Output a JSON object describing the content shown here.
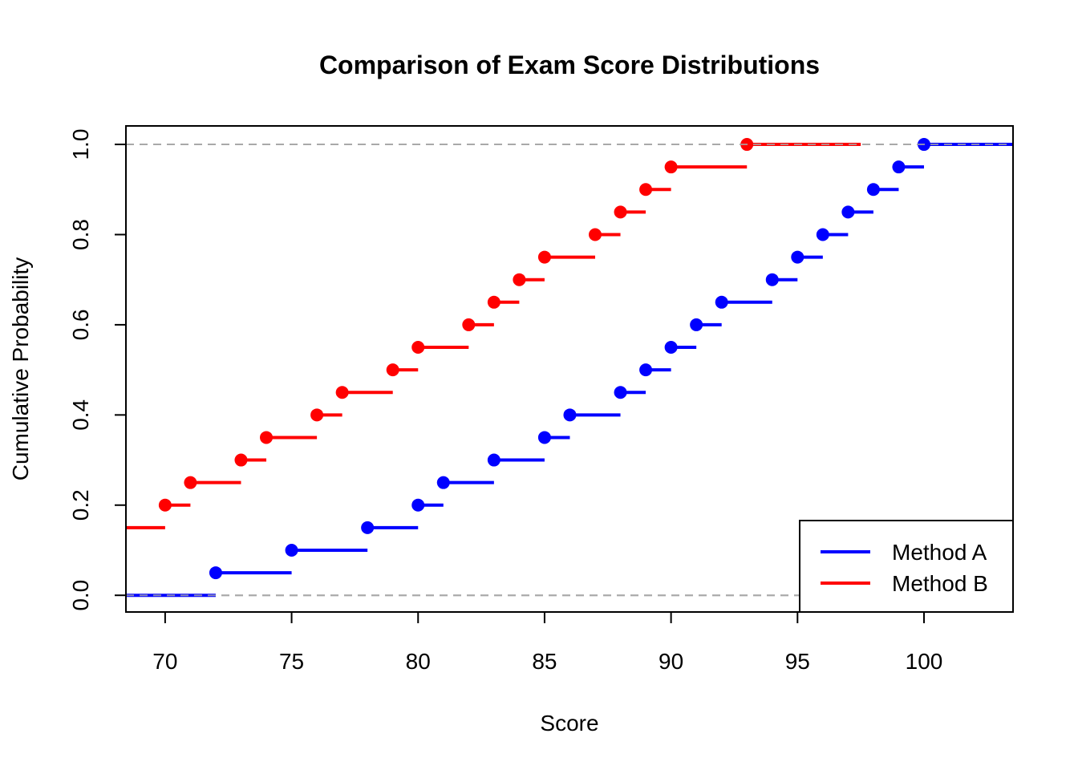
{
  "chart_data": {
    "type": "line",
    "subtype": "ecdf-step",
    "title": "Comparison of Exam Score Distributions",
    "xlabel": "Score",
    "ylabel": "Cumulative Probability",
    "xlim": [
      68.45,
      103.52
    ],
    "ylim": [
      -0.037,
      1.041
    ],
    "xticks": [
      70,
      75,
      80,
      85,
      90,
      95,
      100
    ],
    "xtick_labels": [
      "70",
      "75",
      "80",
      "85",
      "90",
      "95",
      "100"
    ],
    "yticks": [
      0,
      0.2,
      0.4,
      0.6,
      0.8,
      1.0
    ],
    "ytick_labels": [
      "0.0",
      "0.2",
      "0.4",
      "0.6",
      "0.8",
      "1.0"
    ],
    "reference_lines": [
      0,
      1
    ],
    "legend_position": "bottom-right",
    "series": [
      {
        "name": "Method A",
        "color": "#0000ff",
        "start_value": 0,
        "x": [
          72,
          75,
          78,
          80,
          81,
          83,
          85,
          86,
          88,
          89,
          90,
          91,
          92,
          94,
          95,
          96,
          97,
          98,
          99,
          100
        ],
        "y": [
          0.05,
          0.1,
          0.15,
          0.2,
          0.25,
          0.3,
          0.35,
          0.4,
          0.45,
          0.5,
          0.55,
          0.6,
          0.65,
          0.7,
          0.75,
          0.8,
          0.85,
          0.9,
          0.95,
          1.0
        ],
        "end_x": 103.52
      },
      {
        "name": "Method B",
        "color": "#ff0000",
        "start_value": 0.15,
        "x": [
          70,
          71,
          73,
          74,
          76,
          77,
          79,
          80,
          82,
          83,
          84,
          85,
          87,
          88,
          89,
          90,
          93
        ],
        "y": [
          0.2,
          0.25,
          0.3,
          0.35,
          0.4,
          0.45,
          0.5,
          0.55,
          0.6,
          0.65,
          0.7,
          0.75,
          0.8,
          0.85,
          0.9,
          0.95,
          1.0
        ],
        "end_x": 97.5
      }
    ]
  }
}
